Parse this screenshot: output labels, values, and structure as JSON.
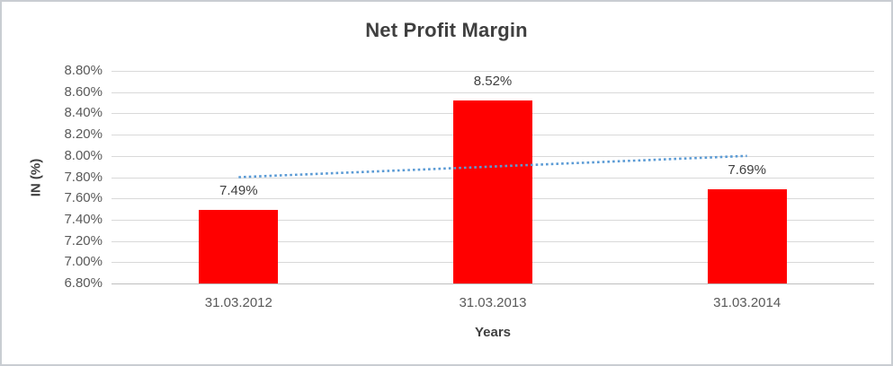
{
  "chart_data": {
    "type": "bar",
    "title": "Net Profit Margin",
    "xlabel": "Years",
    "ylabel": "IN (%)",
    "categories": [
      "31.03.2012",
      "31.03.2013",
      "31.03.2014"
    ],
    "values": [
      7.49,
      8.52,
      7.69
    ],
    "data_labels": [
      "7.49%",
      "8.52%",
      "7.69%"
    ],
    "ylim": [
      6.8,
      8.8
    ],
    "ytick_step": 0.2,
    "yticks": [
      {
        "value": 8.8,
        "label": "8.80%"
      },
      {
        "value": 8.6,
        "label": "8.60%"
      },
      {
        "value": 8.4,
        "label": "8.40%"
      },
      {
        "value": 8.2,
        "label": "8.20%"
      },
      {
        "value": 8.0,
        "label": "8.00%"
      },
      {
        "value": 7.8,
        "label": "7.80%"
      },
      {
        "value": 7.6,
        "label": "7.60%"
      },
      {
        "value": 7.4,
        "label": "7.40%"
      },
      {
        "value": 7.2,
        "label": "7.20%"
      },
      {
        "value": 7.0,
        "label": "7.00%"
      },
      {
        "value": 6.8,
        "label": "6.80%"
      }
    ],
    "grid": true,
    "legend": "none",
    "bar_color": "#ff0000",
    "trendline": {
      "kind": "linear",
      "style": "dotted",
      "color": "#5b9bd5",
      "start_value": 7.8,
      "end_value": 8.0
    }
  },
  "colors": {
    "title_text": "#3f3f3f",
    "axis_text": "#595959",
    "label_text": "#404040",
    "gridline": "#d9d9d9",
    "axis_line": "#bfbfbf",
    "frame_border": "#c9cdd2",
    "background": "#ffffff"
  }
}
